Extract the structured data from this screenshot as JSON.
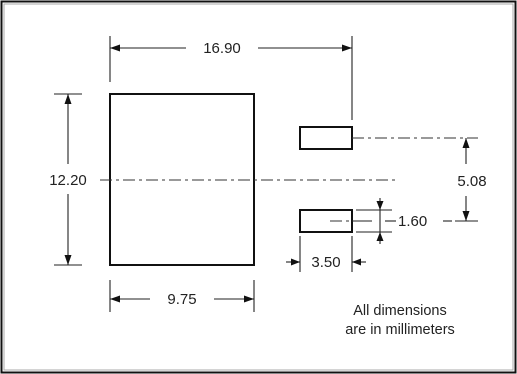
{
  "dimensions": {
    "overall_width": "16.90",
    "body_height": "12.20",
    "body_width": "9.75",
    "pin_pitch": "5.08",
    "pin_height": "1.60",
    "pin_length": "3.50"
  },
  "note": {
    "line1": "All dimensions",
    "line2": "are in millimeters"
  },
  "colors": {
    "line": "#111111",
    "background": "#ffffff"
  }
}
